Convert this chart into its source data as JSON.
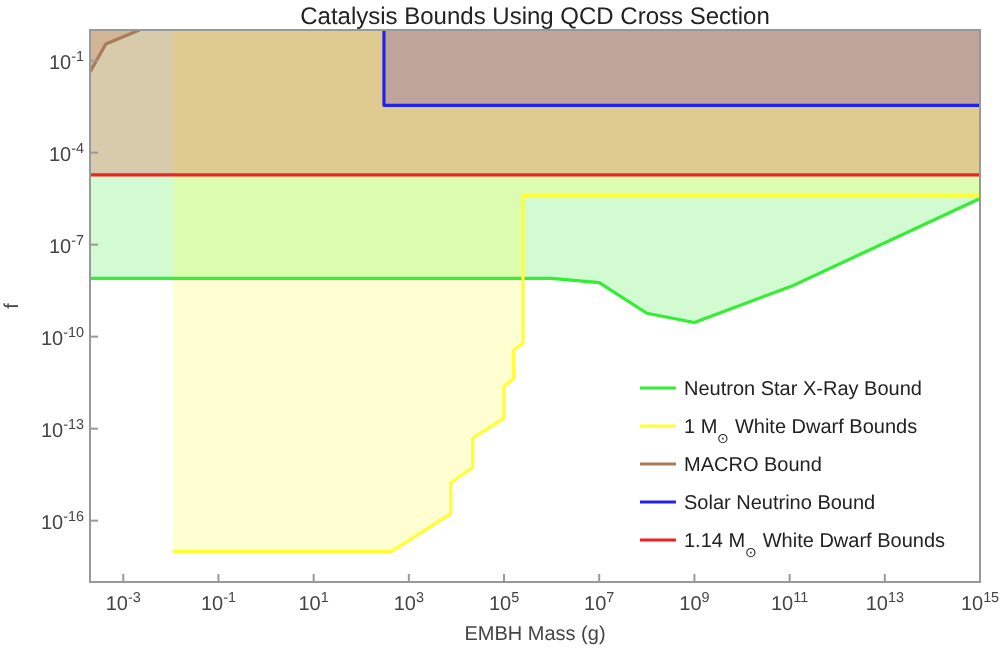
{
  "chart_data": {
    "type": "line",
    "title": "Catalysis Bounds Using QCD Cross Section",
    "xlabel": "EMBH Mass (g)",
    "ylabel": "f",
    "log": "xy",
    "grid": false,
    "legend": "bottom right",
    "marker": "none",
    "line_style": "solid",
    "xlim": [
      0.0002,
      1000000000000000.0
    ],
    "ylim": [
      1e-18,
      1
    ],
    "xticks": [
      {
        "value": 0.001,
        "label": "10$^{-3}$"
      },
      {
        "value": 0.1,
        "label": "10$^{-1}$"
      },
      {
        "value": 10,
        "label": "10$^{1}$"
      },
      {
        "value": 1000,
        "label": "10$^{3}$"
      },
      {
        "value": 100000,
        "label": "10$^{5}$"
      },
      {
        "value": 10000000.0,
        "label": "10$^{7}$"
      },
      {
        "value": 1000000000.0,
        "label": "10$^{9}$"
      },
      {
        "value": 100000000000.0,
        "label": "10$^{11}$"
      },
      {
        "value": 10000000000000.0,
        "label": "10$^{13}$"
      },
      {
        "value": 1000000000000000.0,
        "label": "10$^{15}$"
      }
    ],
    "yticks": [
      {
        "value": 1e-16,
        "label": "10$^{-16}$"
      },
      {
        "value": 1e-13,
        "label": "10$^{-13}$"
      },
      {
        "value": 1e-10,
        "label": "10$^{-10}$"
      },
      {
        "value": 1e-07,
        "label": "10$^{-7}$"
      },
      {
        "value": 0.0001,
        "label": "10$^{-4}$"
      },
      {
        "value": 0.1,
        "label": "10$^{-1}$"
      }
    ],
    "series": [
      {
        "name": "Neutron Star X-Ray Bound",
        "color": "#33ee33",
        "x": [
          0.0002,
          1000000,
          10000000.0,
          100000000.0,
          1000000000.0,
          120000000000.0,
          1000000000000000.0
        ],
        "values": [
          8e-09,
          8e-09,
          5.8e-09,
          5.8e-10,
          2.9e-10,
          4.7e-09,
          3.2e-06
        ],
        "lower": [
          8e-09,
          8e-09,
          5.8e-09,
          5.8e-10,
          2.9e-10,
          4.7e-09,
          3.2e-06
        ],
        "upper": [
          1,
          1,
          1,
          1,
          1,
          1,
          1
        ]
      },
      {
        "name": "1 M$_{⊙}$ White Dwarf Bounds",
        "color": "#ffff33",
        "x": [
          0.011,
          430,
          7600,
          7600,
          22000,
          22000,
          100000,
          100000,
          160000,
          160000,
          250000,
          250000,
          1000000000000000.0
        ],
        "values": [
          1e-17,
          1e-17,
          1.7e-16,
          1.7e-15,
          5.5e-15,
          4.9e-14,
          2.2e-13,
          2.4e-12,
          4.4e-12,
          3.7e-11,
          6.2e-11,
          4e-06,
          4e-06
        ],
        "lower": [
          1e-17,
          1e-17,
          1.7e-16,
          1.7e-15,
          5.5e-15,
          4.9e-14,
          2.2e-13,
          2.4e-12,
          4.4e-12,
          3.7e-11,
          6.2e-11,
          4e-06,
          4e-06
        ],
        "upper": [
          1,
          1,
          1,
          1,
          1,
          1,
          1,
          1,
          1,
          1,
          1,
          1,
          1
        ]
      },
      {
        "name": "MACRO Bound",
        "color": "#a87c5a",
        "x": [
          0.0002,
          0.00043,
          0.0022
        ],
        "values": [
          0.043,
          0.35,
          1
        ],
        "lower": [
          0.043,
          0.35,
          1
        ],
        "upper": [
          1,
          1,
          1
        ]
      },
      {
        "name": "Solar Neutrino Bound",
        "color": "#2222ee",
        "x": [
          300,
          300,
          1000000000000000.0
        ],
        "values": [
          1,
          0.0035,
          0.0035
        ],
        "lower": [
          1,
          0.0035,
          0.0035
        ],
        "upper": [
          1,
          1,
          1
        ]
      },
      {
        "name": "1.14 M$_{⊙}$ White Dwarf Bounds",
        "color": "#ee2222",
        "x": [
          0.0002,
          1000000000000000.0
        ],
        "values": [
          1.9e-05,
          1.9e-05
        ],
        "lower": [
          1.9e-05,
          1.9e-05
        ],
        "upper": [
          1,
          1
        ]
      }
    ]
  }
}
